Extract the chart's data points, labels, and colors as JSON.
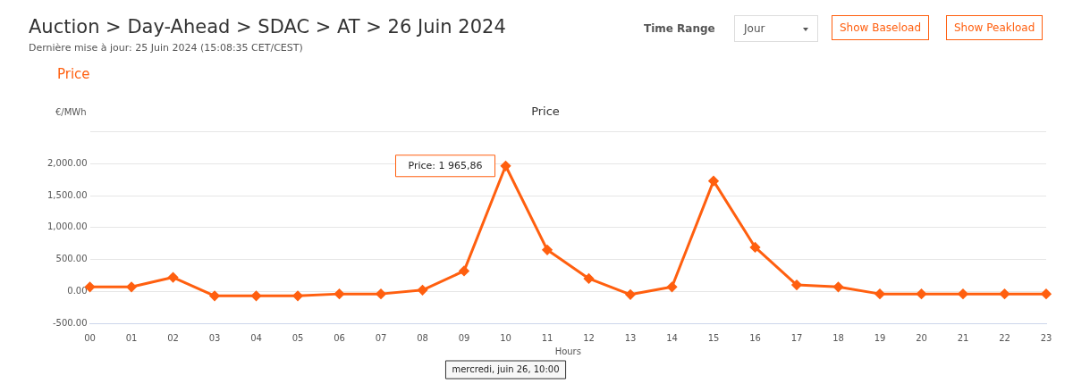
{
  "chart_data": {
    "type": "line",
    "title": "Auction > Day-Ahead > SDAC > AT > 26 Juin 2024",
    "subtitle": "Dernière mise à jour: 25 Juin 2024 (15:08:35 CET/CEST)",
    "ylabel": "€/MWh",
    "xlabel": "Hours",
    "categories": [
      "00",
      "01",
      "02",
      "03",
      "04",
      "05",
      "06",
      "07",
      "08",
      "09",
      "10",
      "11",
      "12",
      "13",
      "14",
      "15",
      "16",
      "17",
      "18",
      "19",
      "20",
      "21",
      "22",
      "23"
    ],
    "series": [
      {
        "name": "Price",
        "color": "#ff5f0f",
        "values": [
          70,
          70,
          220,
          -70,
          -70,
          -70,
          -40,
          -40,
          20,
          320,
          1965.86,
          650,
          200,
          -50,
          70,
          1730,
          690,
          100,
          70,
          -40,
          -40,
          -40,
          -40,
          -40
        ]
      }
    ],
    "ylim": [
      -500,
      2500
    ],
    "yticks": [
      {
        "value": -500,
        "label": "-500.00"
      },
      {
        "value": 0,
        "label": "0.00"
      },
      {
        "value": 500,
        "label": "500.00"
      },
      {
        "value": 1000,
        "label": "1,000.00"
      },
      {
        "value": 1500,
        "label": "1,500.00"
      },
      {
        "value": 2000,
        "label": "2,000.00"
      },
      {
        "value": 2500,
        "label": null
      }
    ],
    "grid": "y",
    "legend": false,
    "marker": "diamond",
    "line_style": "solid",
    "annotations": [
      "Price",
      "Time Range",
      "Jour",
      "Show Baseload",
      "Show Peakload",
      {
        "text": "Price: 1 965,86",
        "x": "10",
        "y": 1965.86
      },
      "mercredi, juin 26, 10:00"
    ]
  }
}
